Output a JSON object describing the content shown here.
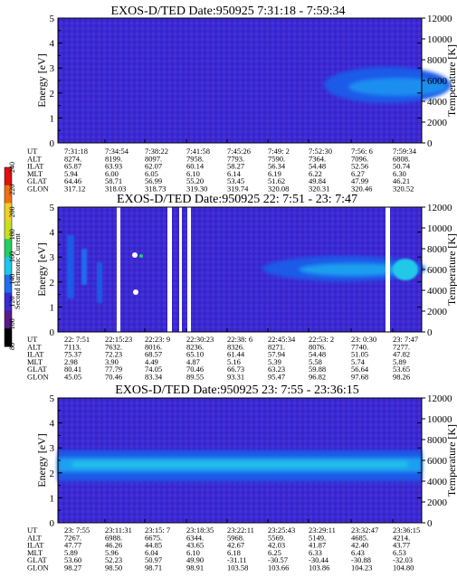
{
  "panels": [
    {
      "title": "EXOS-D/TED   Date:950925  7:31:18 - 7:59:34",
      "ylabel_left": "Energy [eV]",
      "ylabel_right": "Temperature [K]",
      "table": [
        {
          "label": "UT",
          "values": [
            "7:31:18",
            "7:34:54",
            "7:38:22",
            "7:41:58",
            "7:45:26",
            "7:49: 2",
            "7:52:30",
            "7:56: 6",
            "7:59:34"
          ]
        },
        {
          "label": "ALT",
          "values": [
            "8274.",
            "8199.",
            "8097.",
            "7958.",
            "7793.",
            "7590.",
            "7364.",
            "7096.",
            "6808."
          ]
        },
        {
          "label": "ILAT",
          "values": [
            "65.87",
            "63.93",
            "62.07",
            "60.14",
            "58.27",
            "56.34",
            "54.48",
            "52.56",
            "50.74"
          ]
        },
        {
          "label": "MLT",
          "values": [
            "5.94",
            "6.00",
            "6.05",
            "6.10",
            "6.14",
            "6.19",
            "6.22",
            "6.27",
            "6.30"
          ]
        },
        {
          "label": "GLAT",
          "values": [
            "64.46",
            "58.71",
            "56.99",
            "55.20",
            "53.45",
            "51.62",
            "49.84",
            "47.99",
            "46.21"
          ]
        },
        {
          "label": "GLON",
          "values": [
            "317.12",
            "318.03",
            "318.73",
            "319.30",
            "319.74",
            "320.08",
            "320.31",
            "320.46",
            "320.52"
          ]
        }
      ]
    },
    {
      "title": "EXOS-D/TED   Date:950925  22: 7:51 - 23: 7:47",
      "ylabel_left": "Energy [eV]",
      "ylabel_right": "Temperature [K]",
      "table": [
        {
          "label": "UT",
          "values": [
            "22: 7:51",
            "22:15:23",
            "22:23: 9",
            "22:30:23",
            "22:38: 6",
            "22:45:34",
            "22:53: 2",
            "23: 0:30",
            "23: 7:47"
          ]
        },
        {
          "label": "ALT",
          "values": [
            "7113.",
            "7632.",
            "8016.",
            "8236.",
            "8326.",
            "8271.",
            "8076.",
            "7740.",
            "7277."
          ]
        },
        {
          "label": "ILAT",
          "values": [
            "75.37",
            "72.23",
            "68.57",
            "65.10",
            "61.44",
            "57.94",
            "54.48",
            "51.05",
            "47.82"
          ]
        },
        {
          "label": "MLT",
          "values": [
            "2.98",
            "3.90",
            "4.49",
            "4.87",
            "5.16",
            "5.39",
            "5.58",
            "5.74",
            "5.89"
          ]
        },
        {
          "label": "GLAT",
          "values": [
            "80.41",
            "77.79",
            "74.05",
            "70.46",
            "66.73",
            "63.23",
            "59.88",
            "56.64",
            "53.65"
          ]
        },
        {
          "label": "GLON",
          "values": [
            "45.05",
            "70.46",
            "83.34",
            "89.55",
            "93.31",
            "95.47",
            "96.82",
            "97.68",
            "98.26"
          ]
        }
      ]
    },
    {
      "title": "EXOS-D/TED   Date:950925  23: 7:55 - 23:36:15",
      "ylabel_left": "Energy [eV]",
      "ylabel_right": "Temperature [K]",
      "table": [
        {
          "label": "UT",
          "values": [
            "23: 7:55",
            "23:11:31",
            "23:15: 7",
            "23:18:35",
            "23:22:11",
            "23:25:43",
            "23:29:11",
            "23:32:47",
            "23:36:15"
          ]
        },
        {
          "label": "ALT",
          "values": [
            "7267.",
            "6988.",
            "6675.",
            "6344.",
            "5968.",
            "5569.",
            "5149.",
            "4685.",
            "4214."
          ]
        },
        {
          "label": "ILAT",
          "values": [
            "47.77",
            "46.26",
            "44.85",
            "43.65",
            "42.67",
            "42.03",
            "41.87",
            "42.40",
            "43.77"
          ]
        },
        {
          "label": "MLT",
          "values": [
            "5.89",
            "5.96",
            "6.04",
            "6.10",
            "6.18",
            "6.25",
            "6.33",
            "6.43",
            "6.53"
          ]
        },
        {
          "label": "GLAT",
          "values": [
            "53.60",
            "52.23",
            "50.97",
            "49.90",
            "-31.11",
            "-30.57",
            "-30.44",
            "-30.88",
            "-32.03"
          ]
        },
        {
          "label": "GLON",
          "values": [
            "98.27",
            "98.50",
            "98.71",
            "98.91",
            "103.58",
            "103.66",
            "103.86",
            "104.23",
            "104.80"
          ]
        }
      ]
    }
  ],
  "colorbar": {
    "label": "Second Harmonic Current",
    "ticks": [
      "80",
      "100",
      "120",
      "140",
      "160",
      "180",
      "200",
      "220",
      "240"
    ],
    "colors": [
      "#000000",
      "#5a1a8c",
      "#3a2ad6",
      "#1f6ef0",
      "#18c8e8",
      "#20d060",
      "#c8e020",
      "#f0d020",
      "#f07010",
      "#e01010"
    ]
  },
  "chart_data": [
    {
      "type": "heatmap",
      "title": "EXOS-D/TED   Date:950925  7:31:18 - 7:59:34",
      "xlabel": "UT",
      "ylabel": "Energy [eV]",
      "y2label": "Temperature [K]",
      "x_ticks": [
        "7:31:18",
        "7:34:54",
        "7:38:22",
        "7:41:58",
        "7:45:26",
        "7:49: 2",
        "7:52:30",
        "7:56: 6",
        "7:59:34"
      ],
      "ylim": [
        0,
        5
      ],
      "y2lim": [
        0,
        12000
      ],
      "y_ticks": [
        0,
        1,
        2,
        3,
        4,
        5
      ],
      "y2_ticks": [
        0,
        2000,
        4000,
        6000,
        8000,
        10000,
        12000
      ],
      "features": [
        {
          "x_range": [
            "7:52:30",
            "7:59:34"
          ],
          "energy_range": [
            1.9,
            3.1
          ],
          "level": "140-160"
        }
      ]
    },
    {
      "type": "heatmap",
      "title": "EXOS-D/TED   Date:950925  22: 7:51 - 23: 7:47",
      "xlabel": "UT",
      "ylabel": "Energy [eV]",
      "y2label": "Temperature [K]",
      "x_ticks": [
        "22: 7:51",
        "22:15:23",
        "22:23: 9",
        "22:30:23",
        "22:38: 6",
        "22:45:34",
        "22:53: 2",
        "23: 0:30",
        "23: 7:47"
      ],
      "ylim": [
        0,
        5
      ],
      "y2lim": [
        0,
        12000
      ],
      "y_ticks": [
        0,
        1,
        2,
        3,
        4,
        5
      ],
      "y2_ticks": [
        0,
        2000,
        4000,
        6000,
        8000,
        10000,
        12000
      ],
      "features": [
        {
          "x_range": [
            "22:45:34",
            "23: 7:47"
          ],
          "energy_range": [
            2.2,
            3.1
          ],
          "level": "140-160"
        }
      ]
    },
    {
      "type": "heatmap",
      "title": "EXOS-D/TED   Date:950925  23: 7:55 - 23:36:15",
      "xlabel": "UT",
      "ylabel": "Energy [eV]",
      "y2label": "Temperature [K]",
      "x_ticks": [
        "23: 7:55",
        "23:11:31",
        "23:15: 7",
        "23:18:35",
        "23:22:11",
        "23:25:43",
        "23:29:11",
        "23:32:47",
        "23:36:15"
      ],
      "ylim": [
        0,
        5
      ],
      "y2lim": [
        0,
        12000
      ],
      "y_ticks": [
        0,
        1,
        2,
        3,
        4,
        5
      ],
      "y2_ticks": [
        0,
        2000,
        4000,
        6000,
        8000,
        10000,
        12000
      ],
      "features": [
        {
          "x_range": [
            "23: 7:55",
            "23:36:15"
          ],
          "energy_range": [
            1.8,
            2.8
          ],
          "level": "140-160"
        }
      ]
    }
  ]
}
